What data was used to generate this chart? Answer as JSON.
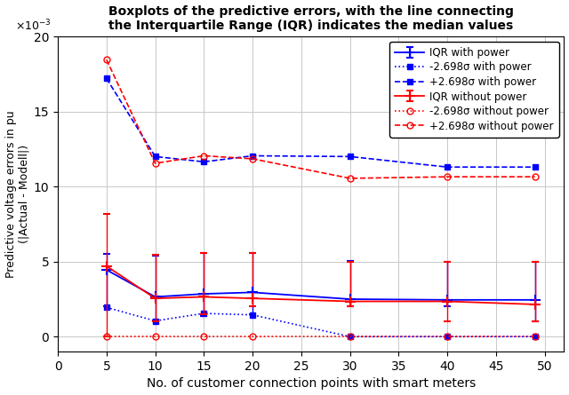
{
  "title_line1": "Boxplots of the predictive errors, with the line connecting",
  "title_line2": "the Interquartile Range (IQR) indicates the median values",
  "xlabel": "No. of customer connection points with smart meters",
  "ylabel": "Predictive voltage errors in pu\n(|Actual - Modell|)",
  "x": [
    5,
    10,
    15,
    20,
    30,
    40,
    49
  ],
  "xlim": [
    0,
    52
  ],
  "ylim": [
    -0.001,
    0.02
  ],
  "yticks": [
    0.0,
    0.005,
    0.01,
    0.015,
    0.02
  ],
  "xticks": [
    0,
    5,
    10,
    15,
    20,
    25,
    30,
    35,
    40,
    45,
    50
  ],
  "blue_IQR_median": [
    0.00445,
    0.00265,
    0.00285,
    0.00295,
    0.0025,
    0.00245,
    0.00245
  ],
  "blue_IQR_yerr_low": [
    0.00245,
    0.00155,
    0.00145,
    0.00145,
    0.0005,
    0.00045,
    0.00145
  ],
  "blue_IQR_yerr_high": [
    0.00105,
    0.00275,
    0.0027,
    0.0026,
    0.00255,
    0.00255,
    0.00255
  ],
  "blue_lower": [
    0.00195,
    0.00105,
    0.00155,
    0.00145,
    0.0,
    0.0,
    0.0
  ],
  "blue_upper": [
    0.0172,
    0.012,
    0.01165,
    0.01205,
    0.012,
    0.0113,
    0.0113
  ],
  "red_IQR_median": [
    0.0047,
    0.00255,
    0.00265,
    0.00255,
    0.00235,
    0.00235,
    0.00215
  ],
  "red_IQR_yerr_low": [
    0.0047,
    0.00155,
    0.00115,
    0.0005,
    0.00035,
    0.00135,
    0.00115
  ],
  "red_IQR_yerr_high": [
    0.00345,
    0.0029,
    0.0029,
    0.00305,
    0.00265,
    0.00265,
    0.00285
  ],
  "red_lower": [
    0.0,
    0.0,
    0.0,
    0.0,
    0.0,
    0.0,
    0.0
  ],
  "red_upper": [
    0.01845,
    0.01155,
    0.01205,
    0.01185,
    0.01055,
    0.01065,
    0.01065
  ],
  "blue_color": "#0000ff",
  "red_color": "#ff0000",
  "background": "#ffffff",
  "grid_color": "#c8c8c8",
  "legend_labels": [
    "IQR with power",
    "-2.698σ with power",
    "+2.698σ with power",
    "IQR without power",
    "-2.698σ without power",
    "+2.698σ without power"
  ]
}
